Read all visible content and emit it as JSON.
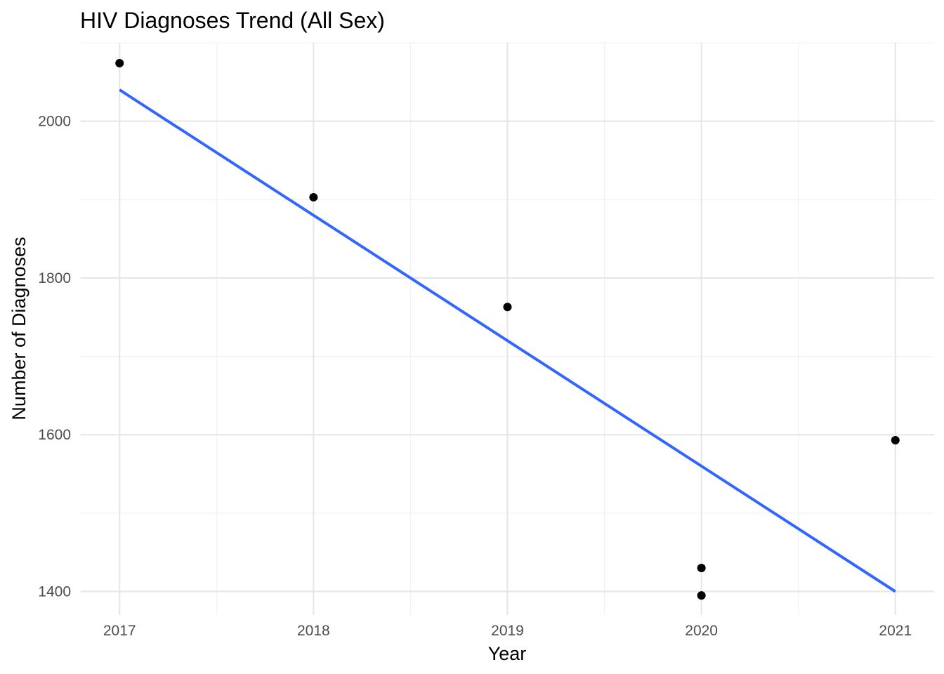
{
  "chart_data": {
    "type": "scatter",
    "title": "HIV Diagnoses Trend (All Sex)",
    "xlabel": "Year",
    "ylabel": "Number of Diagnoses",
    "xlim": [
      2016.8,
      2021.2
    ],
    "ylim": [
      1370,
      2100
    ],
    "x_ticks": [
      2017,
      2018,
      2019,
      2020,
      2021
    ],
    "y_ticks": [
      1400,
      1600,
      1800,
      2000
    ],
    "x_minor_ticks": [
      2017.5,
      2018.5,
      2019.5,
      2020.5
    ],
    "y_minor_ticks": [
      1500,
      1700,
      1900,
      2100
    ],
    "points": [
      {
        "x": 2017,
        "y": 2074
      },
      {
        "x": 2018,
        "y": 1903
      },
      {
        "x": 2019,
        "y": 1763
      },
      {
        "x": 2020,
        "y": 1430
      },
      {
        "x": 2020,
        "y": 1395
      },
      {
        "x": 2021,
        "y": 1593
      }
    ],
    "trend_line": {
      "start": {
        "x": 2017,
        "y": 2040
      },
      "end": {
        "x": 2021,
        "y": 1400
      }
    },
    "grid": true,
    "legend": "none",
    "colors": {
      "point": "#000000",
      "trend_line": "#3366FF",
      "grid_major": "#e5e5e5",
      "grid_minor": "#f0f0f0",
      "tick_label": "#4d4d4d"
    }
  }
}
